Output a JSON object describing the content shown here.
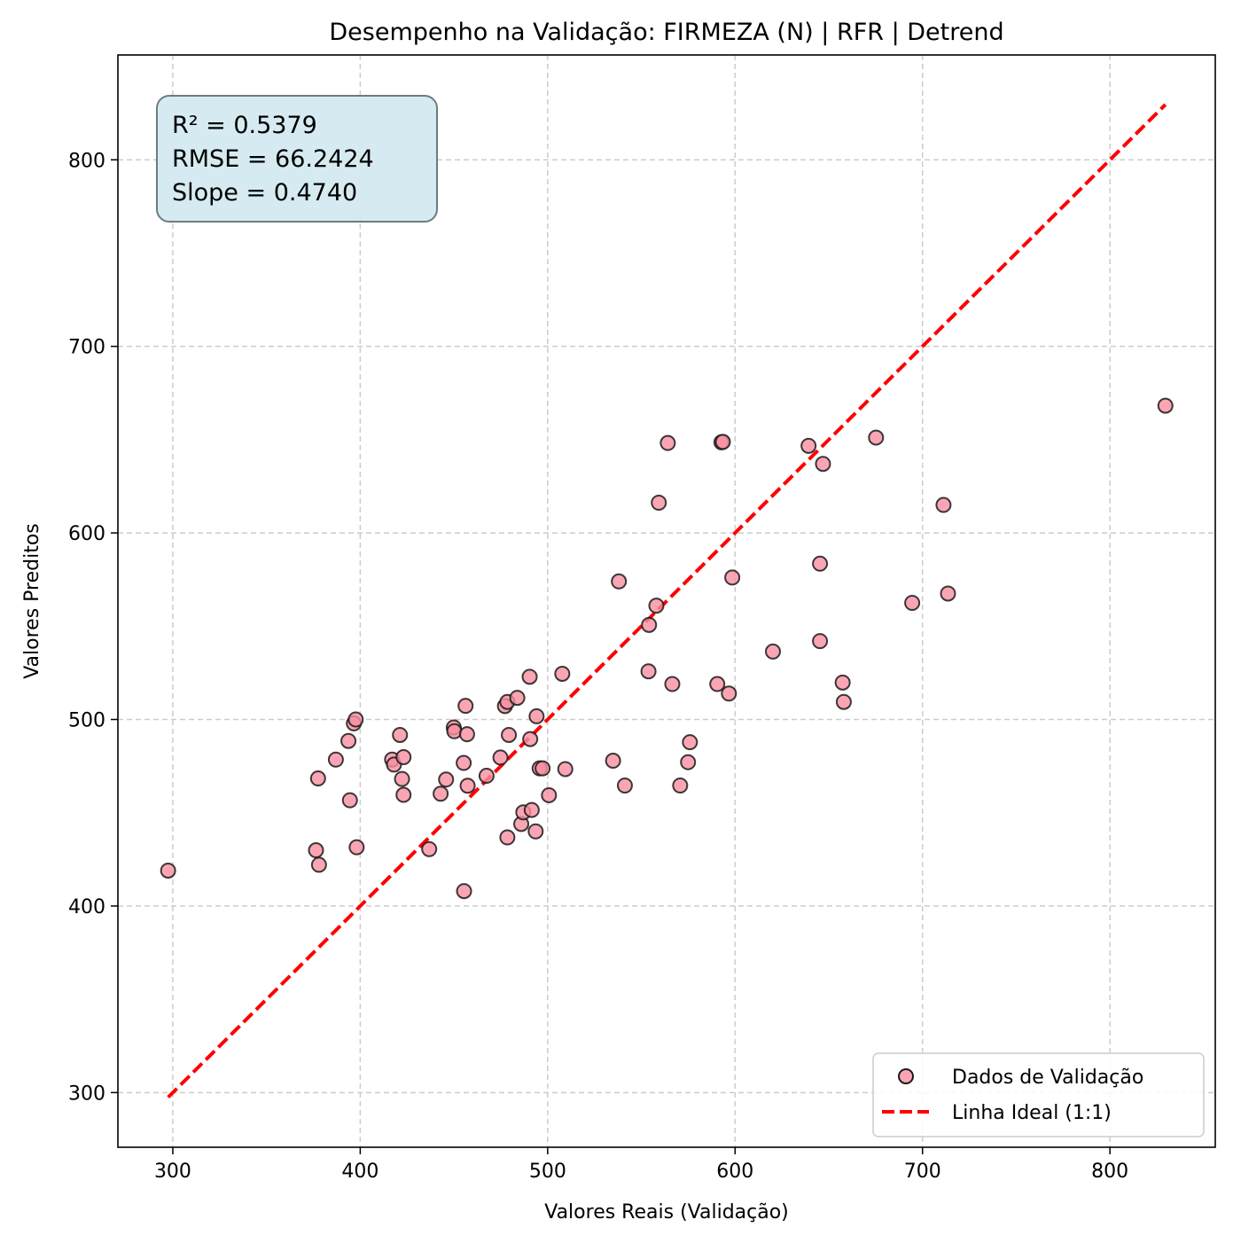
{
  "chart_data": {
    "type": "scatter",
    "title": "Desempenho na Validação: FIRMEZA (N) | RFR | Detrend",
    "xlabel": "Valores Reais (Validação)",
    "ylabel": "Valores Preditos",
    "xlim": [
      270.7,
      856.2
    ],
    "ylim": [
      270.7,
      856.2
    ],
    "xticks": [
      300,
      400,
      500,
      600,
      700,
      800
    ],
    "yticks": [
      300,
      400,
      500,
      600,
      700,
      800
    ],
    "xtick_labels": [
      "300",
      "400",
      "500",
      "600",
      "700",
      "800"
    ],
    "ytick_labels": [
      "300",
      "400",
      "500",
      "600",
      "700",
      "800"
    ],
    "grid": true,
    "legend_position": "lower right",
    "stats_box": {
      "position": "upper left",
      "lines": [
        "R² = 0.5379",
        "RMSE = 66.2424",
        "Slope = 0.4740"
      ]
    },
    "colors": {
      "points": "#f98ea0",
      "point_edge": "#1a1a1a",
      "ideal_line": "#ff0000",
      "stats_box_bg": "#d4eaf0",
      "grid": "#cccccc"
    },
    "series": [
      {
        "name": "Dados de Validação",
        "type": "scatter",
        "points": [
          [
            297.5,
            419.0
          ],
          [
            376.4,
            429.9
          ],
          [
            378.0,
            422.1
          ],
          [
            377.5,
            468.4
          ],
          [
            387.0,
            478.5
          ],
          [
            393.7,
            488.5
          ],
          [
            394.5,
            456.7
          ],
          [
            396.6,
            497.9
          ],
          [
            397.6,
            500.0
          ],
          [
            398.1,
            431.5
          ],
          [
            417.0,
            478.5
          ],
          [
            418.0,
            475.8
          ],
          [
            421.2,
            491.7
          ],
          [
            422.3,
            468.1
          ],
          [
            423.1,
            459.6
          ],
          [
            423.1,
            479.8
          ],
          [
            436.8,
            430.5
          ],
          [
            442.9,
            460.2
          ],
          [
            445.8,
            467.8
          ],
          [
            449.9,
            495.7
          ],
          [
            450.2,
            493.7
          ],
          [
            455.2,
            476.7
          ],
          [
            455.4,
            408.0
          ],
          [
            456.2,
            507.3
          ],
          [
            457.0,
            492.1
          ],
          [
            457.3,
            464.5
          ],
          [
            467.4,
            469.8
          ],
          [
            474.8,
            479.6
          ],
          [
            477.2,
            507.2
          ],
          [
            478.5,
            509.4
          ],
          [
            478.5,
            436.8
          ],
          [
            479.3,
            491.7
          ],
          [
            483.8,
            511.6
          ],
          [
            485.9,
            444.0
          ],
          [
            487.0,
            450.2
          ],
          [
            490.4,
            522.9
          ],
          [
            490.7,
            489.5
          ],
          [
            491.5,
            451.5
          ],
          [
            493.6,
            440.0
          ],
          [
            494.1,
            501.7
          ],
          [
            495.7,
            473.8
          ],
          [
            497.3,
            473.8
          ],
          [
            500.7,
            459.4
          ],
          [
            507.8,
            524.5
          ],
          [
            509.4,
            473.4
          ],
          [
            534.9,
            477.9
          ],
          [
            538.0,
            574.0
          ],
          [
            541.2,
            464.6
          ],
          [
            554.1,
            550.7
          ],
          [
            553.8,
            525.8
          ],
          [
            558.0,
            561.0
          ],
          [
            559.3,
            616.2
          ],
          [
            564.1,
            648.2
          ],
          [
            566.5,
            519.0
          ],
          [
            570.7,
            464.6
          ],
          [
            574.9,
            477.1
          ],
          [
            575.9,
            487.8
          ],
          [
            590.5,
            519.0
          ],
          [
            592.7,
            648.6
          ],
          [
            593.5,
            648.8
          ],
          [
            596.7,
            513.9
          ],
          [
            598.5,
            576.1
          ],
          [
            620.2,
            536.4
          ],
          [
            639.2,
            646.7
          ],
          [
            645.3,
            542.0
          ],
          [
            645.3,
            583.5
          ],
          [
            646.9,
            637.0
          ],
          [
            657.4,
            519.8
          ],
          [
            658.0,
            509.4
          ],
          [
            675.2,
            651.1
          ],
          [
            694.5,
            562.5
          ],
          [
            711.2,
            615.0
          ],
          [
            713.6,
            567.5
          ],
          [
            829.6,
            668.2
          ]
        ]
      },
      {
        "name": "Linha Ideal (1:1)",
        "type": "line",
        "x": [
          297.5,
          829.6
        ],
        "y": [
          297.5,
          829.6
        ]
      }
    ]
  }
}
